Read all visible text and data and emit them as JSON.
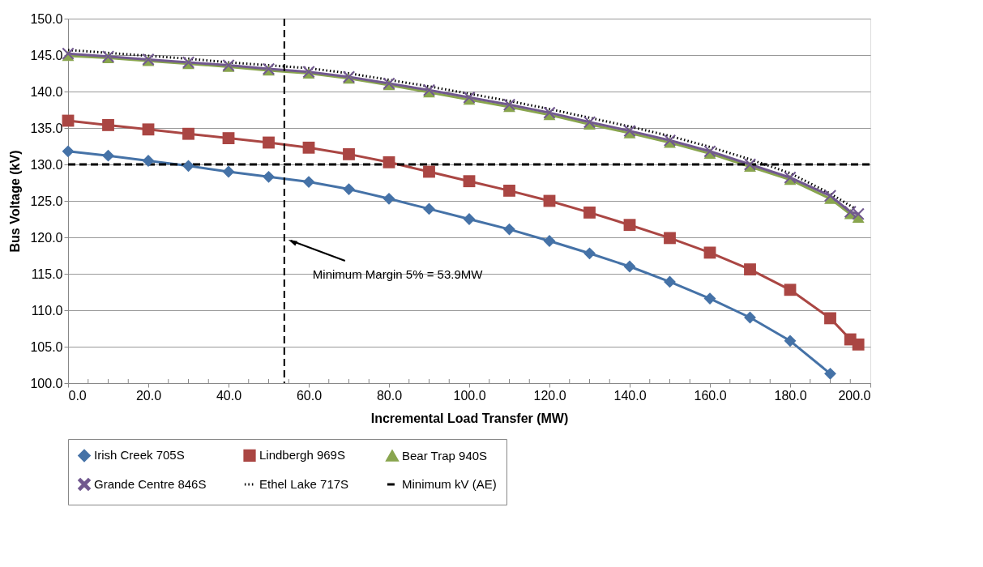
{
  "chart_data": {
    "type": "line",
    "xlabel": "Incremental Load Transfer (MW)",
    "ylabel": "Bus Voltage (kV)",
    "x": [
      0,
      10,
      20,
      30,
      40,
      50,
      60,
      70,
      80,
      90,
      100,
      110,
      120,
      130,
      140,
      150,
      160,
      170,
      180,
      190,
      195,
      197
    ],
    "series": [
      {
        "name": "Irish Creek 705S",
        "color": "#4572a7",
        "marker": "diamond",
        "line_style": "solid",
        "x": [
          0,
          10,
          20,
          30,
          40,
          50,
          60,
          70,
          80,
          90,
          100,
          110,
          120,
          130,
          140,
          150,
          160,
          170,
          180,
          190
        ],
        "values": [
          131.8,
          131.2,
          130.5,
          129.8,
          129.0,
          128.3,
          127.6,
          126.6,
          125.3,
          123.9,
          122.5,
          121.1,
          119.5,
          117.8,
          116.0,
          113.9,
          111.6,
          109.0,
          105.8,
          101.3
        ]
      },
      {
        "name": "Lindbergh 969S",
        "color": "#aa4643",
        "marker": "square",
        "line_style": "solid",
        "values": [
          136.0,
          135.4,
          134.8,
          134.2,
          133.6,
          133.0,
          132.3,
          131.4,
          130.3,
          129.0,
          127.7,
          126.4,
          125.0,
          123.4,
          121.7,
          119.9,
          117.9,
          115.6,
          112.8,
          108.9,
          106.0,
          105.3
        ]
      },
      {
        "name": "Bear Trap 940S",
        "color": "#89a54e",
        "marker": "triangle",
        "line_style": "solid",
        "values": [
          144.9,
          144.6,
          144.2,
          143.8,
          143.4,
          142.9,
          142.5,
          141.8,
          140.9,
          139.9,
          138.9,
          137.9,
          136.8,
          135.5,
          134.3,
          133.0,
          131.5,
          129.7,
          127.9,
          125.3,
          123.2,
          122.7
        ]
      },
      {
        "name": "Grande Centre 846S",
        "color": "#71588f",
        "marker": "cross",
        "line_style": "solid",
        "values": [
          145.2,
          144.8,
          144.4,
          144.0,
          143.6,
          143.1,
          142.7,
          142.0,
          141.1,
          140.2,
          139.2,
          138.2,
          137.1,
          135.8,
          134.6,
          133.3,
          131.8,
          130.0,
          128.2,
          125.7,
          123.5,
          123.2
        ]
      },
      {
        "name": "Ethel Lake 717S",
        "color": "#000000",
        "marker": "none",
        "line_style": "dotted",
        "x": [
          0,
          10,
          20,
          30,
          40,
          50,
          60,
          70,
          80,
          90,
          100,
          110,
          120,
          130,
          140,
          150,
          160,
          170,
          180,
          190,
          196
        ],
        "values": [
          145.7,
          145.3,
          144.9,
          144.5,
          144.0,
          143.6,
          143.2,
          142.5,
          141.6,
          140.7,
          139.7,
          138.7,
          137.6,
          136.4,
          135.2,
          133.9,
          132.4,
          130.7,
          128.8,
          126.0,
          124.0
        ]
      },
      {
        "name": "Minimum kV (AE)",
        "color": "#000000",
        "marker": "none",
        "line_style": "dashed",
        "x": [
          0,
          200
        ],
        "values": [
          130.0,
          130.0
        ]
      }
    ],
    "ref_lines": [
      {
        "axis": "x",
        "value": 53.9,
        "label": null,
        "color": "#000000",
        "line_style": "dashed"
      }
    ],
    "annotations": [
      {
        "text": "Minimum Margin 5% = 53.9MW",
        "x": 53.9,
        "y": 119
      }
    ],
    "xlim": [
      0,
      200
    ],
    "ylim": [
      100,
      150
    ],
    "xticks": [
      {
        "value": 0,
        "label": "0.0"
      },
      {
        "value": 5,
        "label": null
      },
      {
        "value": 10,
        "label": null
      },
      {
        "value": 15,
        "label": null
      },
      {
        "value": 20,
        "label": "20.0"
      },
      {
        "value": 25,
        "label": null
      },
      {
        "value": 30,
        "label": null
      },
      {
        "value": 35,
        "label": null
      },
      {
        "value": 40,
        "label": "40.0"
      },
      {
        "value": 45,
        "label": null
      },
      {
        "value": 50,
        "label": null
      },
      {
        "value": 55,
        "label": null
      },
      {
        "value": 60,
        "label": "60.0"
      },
      {
        "value": 65,
        "label": null
      },
      {
        "value": 70,
        "label": null
      },
      {
        "value": 75,
        "label": null
      },
      {
        "value": 80,
        "label": "80.0"
      },
      {
        "value": 85,
        "label": null
      },
      {
        "value": 90,
        "label": null
      },
      {
        "value": 95,
        "label": null
      },
      {
        "value": 100,
        "label": "100.0"
      },
      {
        "value": 105,
        "label": null
      },
      {
        "value": 110,
        "label": null
      },
      {
        "value": 115,
        "label": null
      },
      {
        "value": 120,
        "label": "120.0"
      },
      {
        "value": 125,
        "label": null
      },
      {
        "value": 130,
        "label": null
      },
      {
        "value": 135,
        "label": null
      },
      {
        "value": 140,
        "label": "140.0"
      },
      {
        "value": 145,
        "label": null
      },
      {
        "value": 150,
        "label": null
      },
      {
        "value": 155,
        "label": null
      },
      {
        "value": 160,
        "label": "160.0"
      },
      {
        "value": 165,
        "label": null
      },
      {
        "value": 170,
        "label": null
      },
      {
        "value": 175,
        "label": null
      },
      {
        "value": 180,
        "label": "180.0"
      },
      {
        "value": 185,
        "label": null
      },
      {
        "value": 190,
        "label": null
      },
      {
        "value": 195,
        "label": null
      },
      {
        "value": 200,
        "label": "200.0"
      }
    ],
    "yticks": [
      {
        "value": 100,
        "label": "100.0"
      },
      {
        "value": 105,
        "label": "105.0"
      },
      {
        "value": 110,
        "label": "110.0"
      },
      {
        "value": 115,
        "label": "115.0"
      },
      {
        "value": 120,
        "label": "120.0"
      },
      {
        "value": 125,
        "label": "125.0"
      },
      {
        "value": 130,
        "label": "130.0"
      },
      {
        "value": 135,
        "label": "135.0"
      },
      {
        "value": 140,
        "label": "140.0"
      },
      {
        "value": 145,
        "label": "145.0"
      },
      {
        "value": 150,
        "label": "150.0"
      }
    ],
    "grid": "y",
    "legend": "bottom"
  }
}
